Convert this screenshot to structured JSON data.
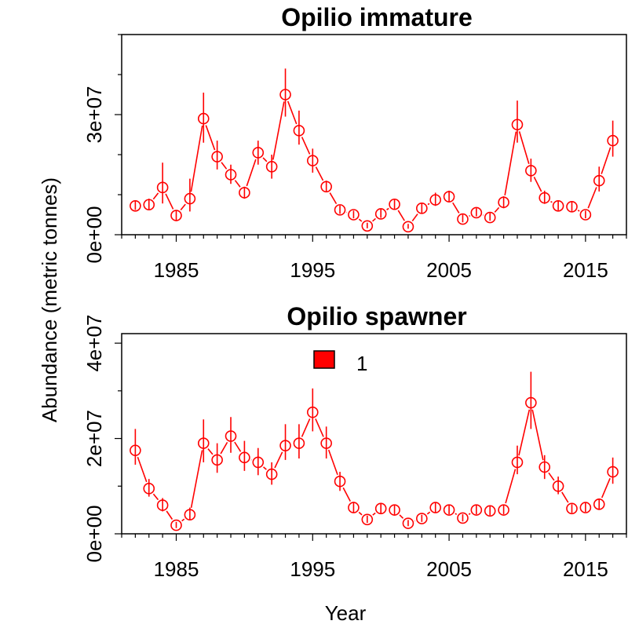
{
  "ylabel": "Abundance (metric tonnes)",
  "xlabel": "Year",
  "colors": {
    "series": "#ff0000",
    "axis": "#000000",
    "legend_fill": "#ff0000"
  },
  "legend": {
    "label": "1",
    "placement": "top-center of lower panel"
  },
  "chart_data": [
    {
      "type": "scatter",
      "title": "Opilio immature",
      "xlim": [
        1981,
        2018
      ],
      "ylim": [
        0,
        50000000
      ],
      "xticks": [
        1985,
        1995,
        2005,
        2015
      ],
      "xtick_labels": [
        "1985",
        "1995",
        "2005",
        "2015"
      ],
      "yticks": [
        0,
        30000000
      ],
      "ytick_labels": [
        "0e+00",
        "3e+07"
      ],
      "grid": false,
      "series": [
        {
          "name": "1",
          "x": [
            1982,
            1983,
            1984,
            1985,
            1986,
            1987,
            1988,
            1989,
            1990,
            1991,
            1992,
            1993,
            1994,
            1995,
            1996,
            1997,
            1998,
            1999,
            2000,
            2001,
            2002,
            2003,
            2004,
            2005,
            2006,
            2007,
            2008,
            2009,
            2010,
            2011,
            2012,
            2013,
            2014,
            2015,
            2016,
            2017
          ],
          "y": [
            7200000,
            7500000,
            11800000,
            4800000,
            9000000,
            29000000,
            19500000,
            15000000,
            10500000,
            20500000,
            17000000,
            35000000,
            26000000,
            18500000,
            12000000,
            6200000,
            5000000,
            2200000,
            5200000,
            7600000,
            2000000,
            6600000,
            8700000,
            9500000,
            3900000,
            5500000,
            4300000,
            8100000,
            27500000,
            16000000,
            9200000,
            7200000,
            7000000,
            5000000,
            13500000,
            23500000
          ],
          "ylow": [
            6200000,
            6200000,
            7800000,
            3600000,
            5800000,
            23000000,
            16300000,
            12700000,
            9000000,
            17500000,
            14000000,
            29500000,
            22500000,
            15500000,
            10600000,
            5200000,
            4100000,
            1600000,
            4200000,
            6400000,
            1500000,
            5400000,
            7200000,
            8100000,
            3100000,
            4600000,
            3500000,
            6600000,
            23000000,
            13200000,
            7700000,
            6100000,
            5900000,
            4100000,
            10800000,
            19500000
          ],
          "yhigh": [
            8400000,
            9000000,
            18000000,
            6000000,
            14000000,
            35500000,
            23500000,
            17500000,
            12000000,
            23500000,
            20000000,
            41500000,
            31000000,
            21500000,
            13500000,
            7300000,
            6000000,
            3000000,
            6400000,
            9000000,
            2700000,
            8000000,
            10500000,
            11000000,
            5000000,
            6600000,
            5400000,
            9600000,
            33500000,
            19000000,
            11000000,
            8500000,
            8400000,
            6000000,
            17000000,
            28500000
          ]
        }
      ]
    },
    {
      "type": "scatter",
      "title": "Opilio spawner",
      "xlim": [
        1981,
        2018
      ],
      "ylim": [
        0,
        42000000
      ],
      "xticks": [
        1985,
        1995,
        2005,
        2015
      ],
      "xtick_labels": [
        "1985",
        "1995",
        "2005",
        "2015"
      ],
      "yticks": [
        0,
        20000000,
        40000000
      ],
      "ytick_labels": [
        "0e+00",
        "2e+07",
        "4e+07"
      ],
      "grid": false,
      "series": [
        {
          "name": "1",
          "x": [
            1982,
            1983,
            1984,
            1985,
            1986,
            1987,
            1988,
            1989,
            1990,
            1991,
            1992,
            1993,
            1994,
            1995,
            1996,
            1997,
            1998,
            1999,
            2000,
            2001,
            2002,
            2003,
            2004,
            2005,
            2006,
            2007,
            2008,
            2009,
            2010,
            2011,
            2012,
            2013,
            2014,
            2015,
            2016,
            2017
          ],
          "y": [
            17500000,
            9500000,
            6000000,
            1800000,
            4000000,
            19000000,
            15500000,
            20500000,
            16000000,
            15000000,
            12500000,
            18500000,
            19000000,
            25500000,
            19000000,
            11000000,
            5500000,
            3000000,
            5300000,
            5000000,
            2200000,
            3200000,
            5500000,
            5000000,
            3300000,
            5000000,
            4800000,
            5000000,
            15000000,
            27500000,
            14000000,
            10000000,
            5300000,
            5500000,
            6200000,
            13000000
          ],
          "ylow": [
            14500000,
            7800000,
            4700000,
            1200000,
            2900000,
            15000000,
            12800000,
            17000000,
            13200000,
            12300000,
            10300000,
            15500000,
            15800000,
            21500000,
            15800000,
            9000000,
            4500000,
            2300000,
            4300000,
            4000000,
            1600000,
            2500000,
            4500000,
            4100000,
            2600000,
            4100000,
            3900000,
            4100000,
            12500000,
            22000000,
            11500000,
            8300000,
            4400000,
            4600000,
            5000000,
            10500000
          ],
          "yhigh": [
            22000000,
            11500000,
            7500000,
            2500000,
            5500000,
            24000000,
            19000000,
            24500000,
            19500000,
            18000000,
            15000000,
            23000000,
            23000000,
            30500000,
            22500000,
            13000000,
            6700000,
            3800000,
            6400000,
            6100000,
            2900000,
            4000000,
            6600000,
            6000000,
            4100000,
            6000000,
            5800000,
            6000000,
            18500000,
            34000000,
            16500000,
            12000000,
            6200000,
            6500000,
            7400000,
            16000000
          ]
        }
      ]
    }
  ]
}
